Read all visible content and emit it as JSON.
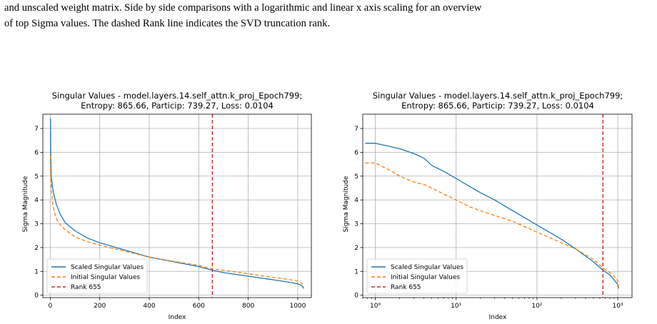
{
  "caption": {
    "line1": "and unscaled weight matrix. Side by side comparisons with a logarithmic and linear x axis scaling for an overview",
    "line2": "of top Sigma values. The dashed Rank line indicates the SVD truncation rank."
  },
  "colors": {
    "scaled": "#1f77b4",
    "initial": "#ff7f0e",
    "rank": "#d62728",
    "grid": "#b0b0b0"
  },
  "chart_data": [
    {
      "type": "line",
      "title": "Singular Values - model.layers.14.self_attn.k_proj_Epoch799;",
      "subtitle": "Entropy: 865.66, Particip: 739.27, Loss: 0.0104",
      "xlabel": "Index",
      "ylabel": "Sigma Magnitude",
      "xscale": "linear",
      "xlim": [
        -30,
        1055
      ],
      "ylim": [
        -0.1,
        7.6
      ],
      "xticks": [
        0,
        200,
        400,
        600,
        800,
        1000
      ],
      "xtick_labels": [
        "0",
        "200",
        "400",
        "600",
        "800",
        "1000"
      ],
      "yticks": [
        0,
        1,
        2,
        3,
        4,
        5,
        6,
        7
      ],
      "grid": true,
      "legend_position": "lower-left",
      "rank_line": {
        "x": 655,
        "label": "Rank 655"
      },
      "series": [
        {
          "name": "Scaled Singular Values",
          "style": "solid",
          "x": [
            1,
            2,
            4,
            8,
            15,
            25,
            40,
            60,
            100,
            150,
            200,
            300,
            400,
            500,
            600,
            655,
            700,
            800,
            900,
            950,
            1000,
            1010,
            1020,
            1024
          ],
          "y": [
            7.42,
            5.8,
            5.0,
            4.6,
            4.2,
            3.8,
            3.4,
            3.05,
            2.7,
            2.4,
            2.2,
            1.9,
            1.6,
            1.4,
            1.2,
            1.05,
            0.95,
            0.8,
            0.65,
            0.57,
            0.48,
            0.44,
            0.36,
            0.28
          ]
        },
        {
          "name": "Initial Singular Values",
          "style": "dashed",
          "x": [
            1,
            2,
            4,
            8,
            15,
            25,
            40,
            60,
            100,
            150,
            200,
            300,
            400,
            500,
            600,
            655,
            700,
            800,
            900,
            950,
            1000,
            1010,
            1020,
            1024
          ],
          "y": [
            5.85,
            5.0,
            4.5,
            4.0,
            3.55,
            3.2,
            2.95,
            2.75,
            2.45,
            2.25,
            2.1,
            1.85,
            1.6,
            1.42,
            1.25,
            1.1,
            1.05,
            0.9,
            0.75,
            0.68,
            0.6,
            0.55,
            0.45,
            0.35
          ]
        }
      ]
    },
    {
      "type": "line",
      "title": "Singular Values - model.layers.14.self_attn.k_proj_Epoch799;",
      "subtitle": "Entropy: 865.66, Particip: 739.27, Loss: 0.0104",
      "xlabel": "Index",
      "ylabel": "Sigma Magnitude",
      "xscale": "log",
      "xlim": [
        0.7,
        1500
      ],
      "ylim": [
        -0.1,
        7.6
      ],
      "xticks": [
        1,
        10,
        100,
        1000
      ],
      "xtick_labels": [
        "10⁰",
        "10¹",
        "10²",
        "10³"
      ],
      "yticks": [
        0,
        1,
        2,
        3,
        4,
        5,
        6,
        7
      ],
      "grid": true,
      "legend_position": "lower-left",
      "rank_line": {
        "x": 655,
        "label": "Rank 655"
      },
      "series": [
        {
          "name": "Scaled Singular Values",
          "style": "solid",
          "x": [
            0.75,
            1,
            1.5,
            2,
            3,
            4,
            5,
            7,
            10,
            15,
            20,
            30,
            50,
            100,
            200,
            300,
            500,
            655,
            800,
            900,
            1000,
            1024
          ],
          "y": [
            6.38,
            6.38,
            6.25,
            6.15,
            5.95,
            5.75,
            5.45,
            5.2,
            4.9,
            4.55,
            4.3,
            4.0,
            3.55,
            2.95,
            2.35,
            1.95,
            1.4,
            1.05,
            0.85,
            0.65,
            0.45,
            0.28
          ]
        },
        {
          "name": "Initial Singular Values",
          "style": "dashed",
          "x": [
            0.75,
            1,
            1.5,
            2,
            3,
            4,
            5,
            7,
            10,
            15,
            20,
            30,
            50,
            100,
            200,
            300,
            500,
            655,
            800,
            900,
            1000,
            1024
          ],
          "y": [
            5.55,
            5.55,
            5.25,
            5.0,
            4.75,
            4.65,
            4.5,
            4.25,
            4.0,
            3.7,
            3.55,
            3.35,
            3.1,
            2.65,
            2.2,
            1.95,
            1.5,
            1.15,
            0.95,
            0.8,
            0.6,
            0.35
          ]
        }
      ]
    }
  ]
}
